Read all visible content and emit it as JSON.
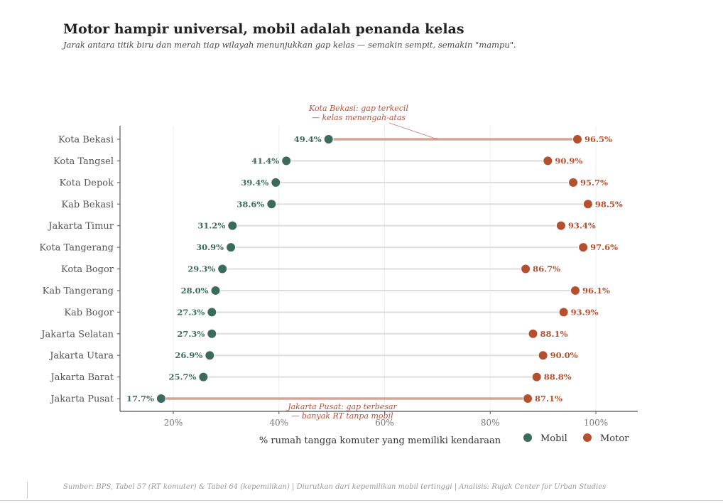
{
  "header": {
    "title": "Motor hampir universal, mobil adalah penanda kelas",
    "subtitle": "Jarak antara titik biru dan merah tiap wilayah menunjukkan gap kelas — semakin sempit, semakin \"mampu\"."
  },
  "footer": {
    "text": "Sumber: BPS, Tabel 57 (RT komuter) & Tabel 64 (kepemilikan)  |  Diurutkan dari kepemilikan mobil tertinggi  |  Analisis: Rujak Center for Urban Studies"
  },
  "colors": {
    "mobil": "#3a6b5c",
    "motor": "#b5502f",
    "connector": "#dddddd",
    "connector_highlight": "#d4a597",
    "annotation": "#b5533a",
    "grid": "#eeeeee",
    "axis": "#555555"
  },
  "chart_data": {
    "type": "dumbbell",
    "title": "Motor hampir universal, mobil adalah penanda kelas",
    "subtitle": "Jarak antara titik biru dan merah tiap wilayah menunjukkan gap kelas — semakin sempit, semakin \"mampu\".",
    "xlabel": "% rumah tangga komuter yang memiliki kendaraan",
    "ylabel": "",
    "xlim": [
      10,
      108
    ],
    "xticks": [
      20,
      40,
      60,
      80,
      100
    ],
    "xtick_labels": [
      "20%",
      "40%",
      "60%",
      "80%",
      "100%"
    ],
    "grid": "vertical",
    "legend": {
      "placement": "bottom-right",
      "entries": [
        "Mobil",
        "Motor"
      ]
    },
    "categories": [
      "Kota Bekasi",
      "Kota Tangsel",
      "Kota Depok",
      "Kab Bekasi",
      "Jakarta Timur",
      "Kota Tangerang",
      "Kota Bogor",
      "Kab Tangerang",
      "Kab Bogor",
      "Jakarta Selatan",
      "Jakarta Utara",
      "Jakarta Barat",
      "Jakarta Pusat"
    ],
    "series": [
      {
        "name": "Mobil",
        "values": [
          49.4,
          41.4,
          39.4,
          38.6,
          31.2,
          30.9,
          29.3,
          28.0,
          27.3,
          27.3,
          26.9,
          25.7,
          17.7
        ],
        "labels": [
          "49.4%",
          "41.4%",
          "39.4%",
          "38.6%",
          "31.2%",
          "30.9%",
          "29.3%",
          "28.0%",
          "27.3%",
          "27.3%",
          "26.9%",
          "25.7%",
          "17.7%"
        ]
      },
      {
        "name": "Motor",
        "values": [
          96.5,
          90.9,
          95.7,
          98.5,
          93.4,
          97.6,
          86.7,
          96.1,
          93.9,
          88.1,
          90.0,
          88.8,
          87.1
        ],
        "labels": [
          "96.5%",
          "90.9%",
          "95.7%",
          "98.5%",
          "93.4%",
          "97.6%",
          "86.7%",
          "96.1%",
          "93.9%",
          "88.1%",
          "90.0%",
          "88.8%",
          "87.1%"
        ]
      }
    ],
    "highlighted": [
      "Kota Bekasi",
      "Jakarta Pusat"
    ],
    "annotations": [
      {
        "target": "Kota Bekasi",
        "line1": "Kota Bekasi: gap terkecil",
        "line2": "— kelas menengah-atas",
        "anchor_x": 70
      },
      {
        "target": "Jakarta Pusat",
        "line1": "Jakarta Pusat: gap terbesar",
        "line2": "— banyak RT tanpa mobil",
        "anchor_x": 52
      }
    ]
  }
}
